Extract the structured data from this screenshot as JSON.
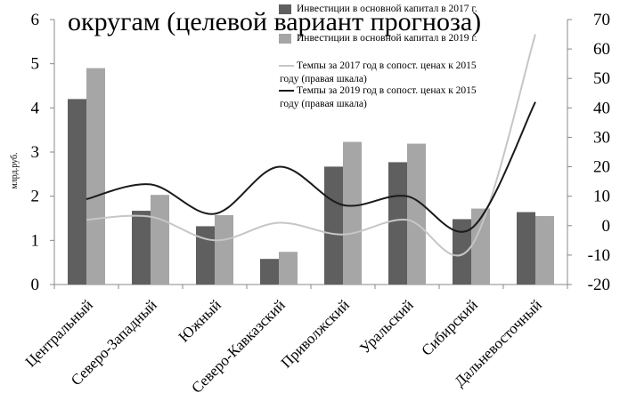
{
  "chart_data": {
    "type": "bar",
    "title": "округам (целевой вариант прогноза)",
    "ylabel": "млрд.руб.",
    "categories": [
      "Центральный",
      "Северо-Западный",
      "Южный",
      "Северо-Кавказский",
      "Приволжский",
      "Уральский",
      "Сибирский",
      "Дальневосточный"
    ],
    "ylim": [
      0,
      6
    ],
    "y_ticks": [
      "0",
      "1",
      "2",
      "3",
      "4",
      "5",
      "6"
    ],
    "y2lim": [
      -20,
      70
    ],
    "y2_ticks": [
      "-20",
      "-10",
      "0",
      "10",
      "20",
      "30",
      "40",
      "50",
      "60",
      "70"
    ],
    "legend_position": "top-right",
    "grid": false,
    "series": [
      {
        "name": "Инвестиции в основной капитал в 2017 г.",
        "kind": "bar",
        "axis": "left",
        "color": "#5f5f5f",
        "values": [
          4.2,
          1.67,
          1.32,
          0.58,
          2.67,
          2.77,
          1.48,
          1.64
        ]
      },
      {
        "name": "Инвестиции в основной капитал в 2019 г.",
        "kind": "bar",
        "axis": "left",
        "color": "#a6a6a6",
        "values": [
          4.9,
          2.03,
          1.57,
          0.74,
          3.23,
          3.19,
          1.72,
          1.55
        ]
      },
      {
        "name": "Темпы за 2017 год в сопост. ценах к 2015 году (правая шкала)",
        "kind": "line",
        "axis": "right",
        "color": "#c6c6c6",
        "values": [
          2,
          3,
          -5,
          1,
          -3,
          2,
          -7,
          65
        ]
      },
      {
        "name": "Темпы за 2019 год в сопост. ценах к 2015 году (правая шкала)",
        "kind": "line",
        "axis": "right",
        "color": "#1a1a1a",
        "values": [
          9,
          14,
          4,
          20,
          7,
          10,
          -1,
          42
        ]
      }
    ]
  }
}
